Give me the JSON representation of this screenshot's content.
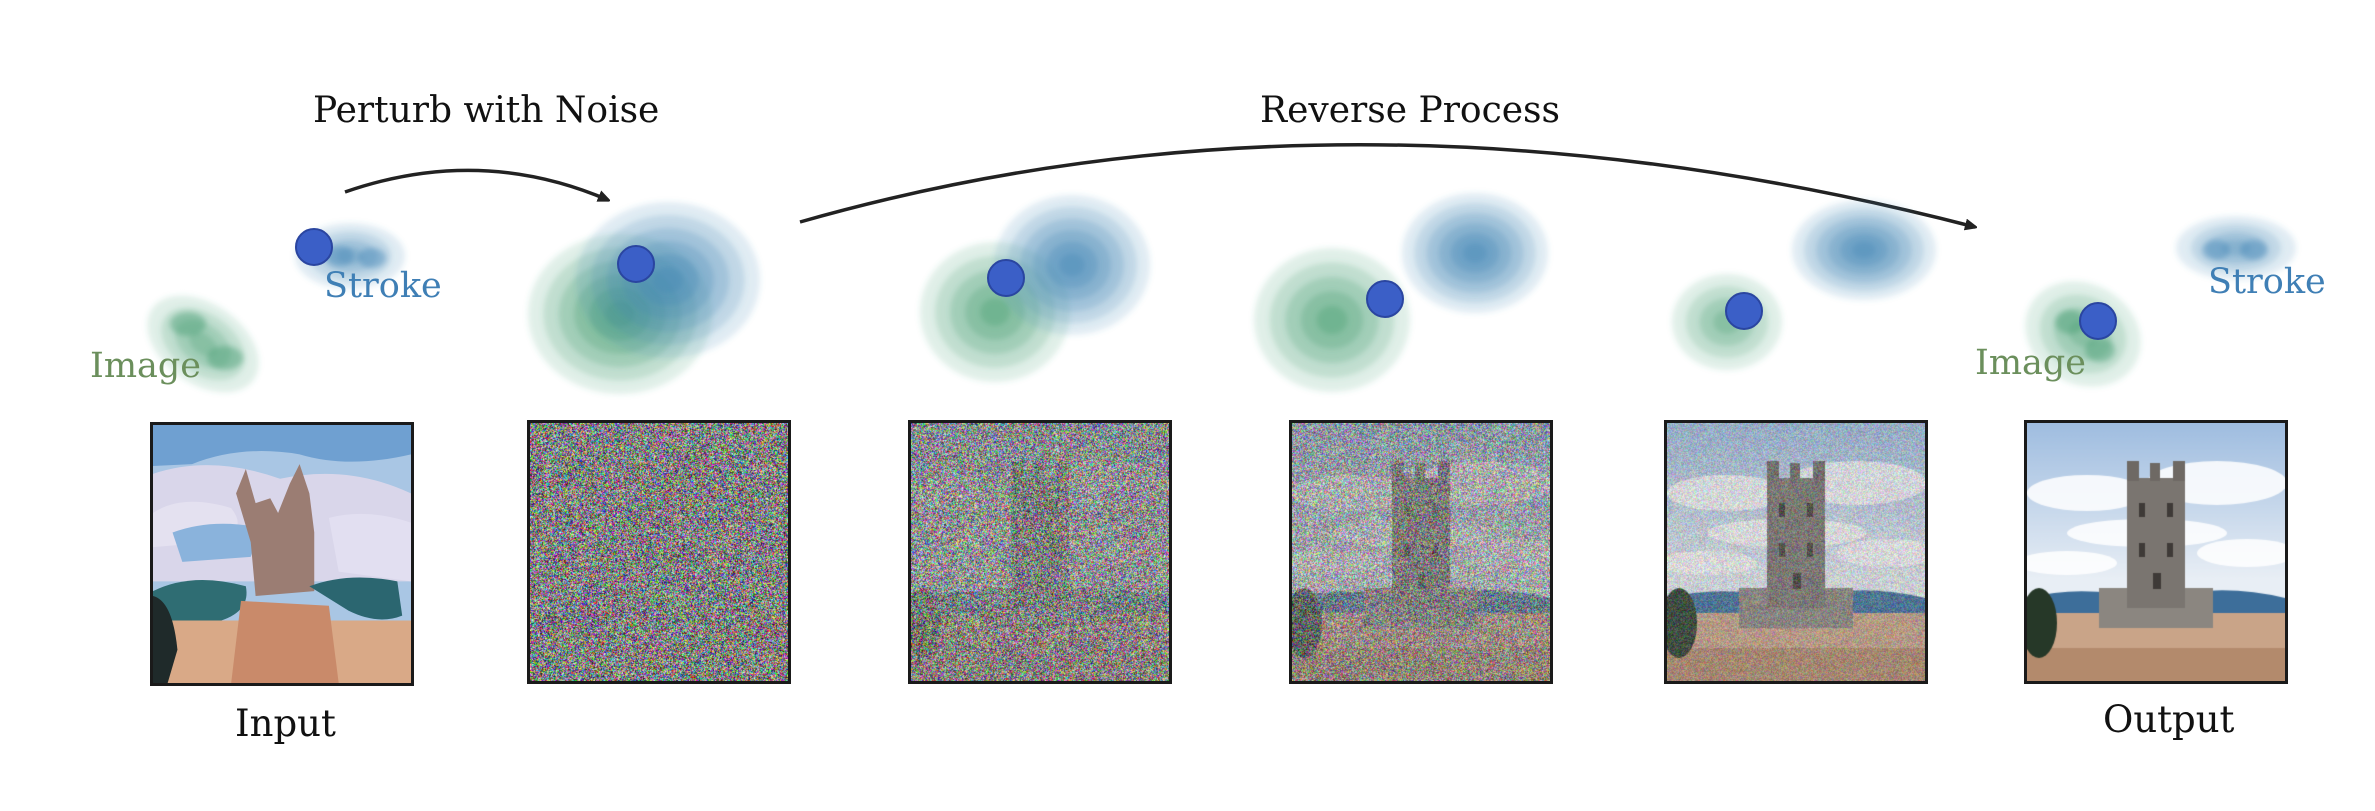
{
  "titles": {
    "perturb": "Perturb with Noise",
    "reverse": "Reverse Process"
  },
  "captions": {
    "input": "Input",
    "output": "Output"
  },
  "distribution_labels": {
    "image": "Image",
    "stroke": "Stroke"
  },
  "colors": {
    "image_distribution": "#3f9a6e",
    "stroke_distribution": "#3f86b5",
    "sample_point": "#3b5fc7",
    "image_label": "#6b8f5c",
    "stroke_label": "#3f7fb5"
  },
  "panels": [
    {
      "name": "input",
      "noise_level": 0.0,
      "content": "stroke-painting"
    },
    {
      "name": "noisy-1",
      "noise_level": 0.98,
      "content": "noise"
    },
    {
      "name": "noisy-2",
      "noise_level": 0.85,
      "content": "noise"
    },
    {
      "name": "noisy-3",
      "noise_level": 0.65,
      "content": "noise"
    },
    {
      "name": "noisy-4",
      "noise_level": 0.3,
      "content": "photo"
    },
    {
      "name": "output",
      "noise_level": 0.0,
      "content": "photo"
    }
  ]
}
